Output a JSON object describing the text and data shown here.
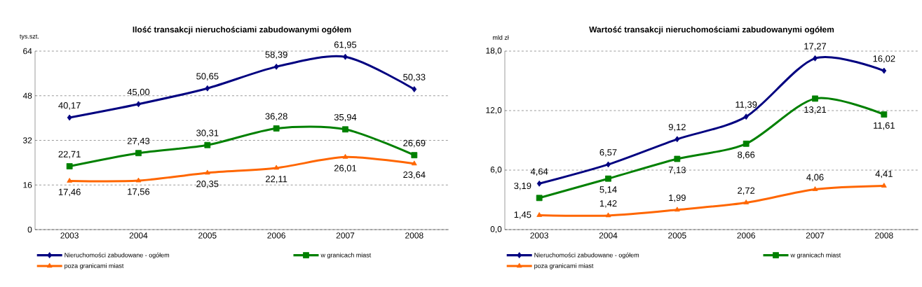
{
  "chart_data": [
    {
      "type": "line",
      "title": "Ilość transakcji nieruchościami zabudowanymi ogółem",
      "ylabel": "tys.szt.",
      "categories": [
        "2003",
        "2004",
        "2005",
        "2006",
        "2007",
        "2008"
      ],
      "ylim": [
        0,
        64
      ],
      "yticks": [
        0,
        16,
        32,
        48,
        64
      ],
      "grid": "y",
      "legend": "bottom",
      "line_style": "solid",
      "series": [
        {
          "name": "Nieruchomości zabudowane - ogółem",
          "color": "#000080",
          "marker": "diamond",
          "values": [
            40.17,
            45.0,
            50.65,
            58.39,
            61.95,
            50.33
          ],
          "value_labels": [
            "40,17",
            "45,00",
            "50,65",
            "58,39",
            "61,95",
            "50,33"
          ]
        },
        {
          "name": "w granicach miast",
          "color": "#008000",
          "marker": "square",
          "values": [
            22.71,
            27.43,
            30.31,
            36.28,
            35.94,
            26.69
          ],
          "value_labels": [
            "22,71",
            "27,43",
            "30,31",
            "36,28",
            "35,94",
            "26,69"
          ]
        },
        {
          "name": "poza granicami miast",
          "color": "#ff6600",
          "marker": "triangle",
          "values": [
            17.46,
            17.56,
            20.35,
            22.11,
            26.01,
            23.64
          ],
          "value_labels": [
            "17,46",
            "17,56",
            "20,35",
            "22,11",
            "26,01",
            "23,64"
          ]
        }
      ]
    },
    {
      "type": "line",
      "title": "Wartość transakcji nieruchomościami zabudowanymi ogółem",
      "ylabel": "mld zł",
      "categories": [
        "2003",
        "2004",
        "2005",
        "2006",
        "2007",
        "2008"
      ],
      "ylim": [
        0,
        18
      ],
      "yticks": [
        {
          "value": 0,
          "label": "0,0"
        },
        {
          "value": 6,
          "label": "6,0"
        },
        {
          "value": 12,
          "label": "12,0"
        },
        {
          "value": 18,
          "label": "18,0"
        }
      ],
      "grid": "y",
      "legend": "bottom",
      "line_style": "solid",
      "series": [
        {
          "name": "Nieruchomości zabudowane - ogółem",
          "color": "#000080",
          "marker": "diamond",
          "values": [
            4.64,
            6.57,
            9.12,
            11.39,
            17.27,
            16.02
          ],
          "value_labels": [
            "4,64",
            "6,57",
            "9,12",
            "11,39",
            "17,27",
            "16,02"
          ]
        },
        {
          "name": "w granicach miast",
          "color": "#008000",
          "marker": "square",
          "values": [
            3.19,
            5.14,
            7.13,
            8.66,
            13.21,
            11.61
          ],
          "value_labels": [
            "3,19",
            "5,14",
            "7,13",
            "8,66",
            "13,21",
            "11,61"
          ]
        },
        {
          "name": "poza granicami miast",
          "color": "#ff6600",
          "marker": "triangle",
          "values": [
            1.45,
            1.42,
            1.99,
            2.72,
            4.06,
            4.41
          ],
          "value_labels": [
            "1,45",
            "1,42",
            "1,99",
            "2,72",
            "4,06",
            "4,41"
          ]
        }
      ]
    }
  ]
}
